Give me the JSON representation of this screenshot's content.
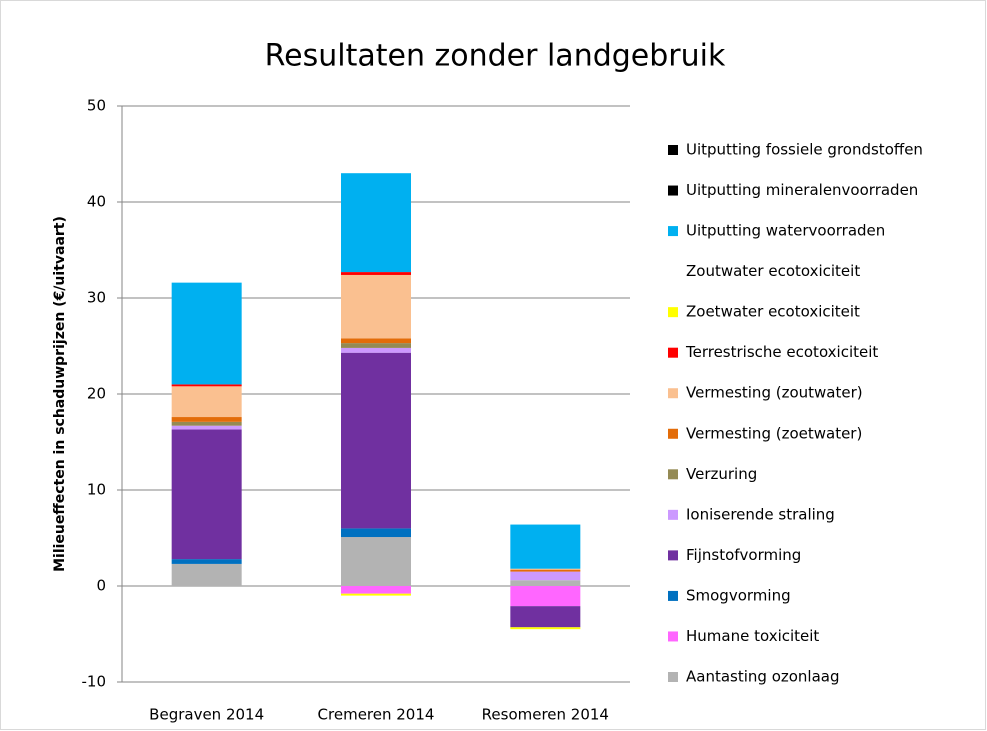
{
  "chart_data": {
    "type": "stacked_bar",
    "title": "Resultaten zonder landgebruik",
    "ylabel": "Milieueffecten in schaduwprijzen (€/uitvaart)",
    "categories": [
      "Begraven 2014",
      "Cremeren 2014",
      "Resomeren 2014"
    ],
    "ylim": [
      -10,
      50
    ],
    "yticks": [
      -10,
      0,
      10,
      20,
      30,
      40,
      50
    ],
    "grid": true,
    "legend": "right",
    "series": [
      {
        "name": "Aantasting ozonlaag",
        "color": "#b3b3b3",
        "values": [
          2.3,
          5.1,
          0.6
        ]
      },
      {
        "name": "Humane toxiciteit",
        "color": "#ff66ff",
        "values": [
          0,
          -0.8,
          -2.1
        ]
      },
      {
        "name": "Smogvorming",
        "color": "#0070c0",
        "values": [
          0.5,
          0.9,
          0
        ]
      },
      {
        "name": "Fijnstofvorming",
        "color": "#7030a0",
        "values": [
          13.5,
          18.3,
          -2.2
        ]
      },
      {
        "name": "Ioniserende straling",
        "color": "#cc99ff",
        "values": [
          0.4,
          0.5,
          0.9
        ]
      },
      {
        "name": "Verzuring",
        "color": "#948a54",
        "values": [
          0.4,
          0.5,
          0
        ]
      },
      {
        "name": "Vermesting (zoetwater)",
        "color": "#e36c09",
        "values": [
          0.5,
          0.5,
          0.2
        ]
      },
      {
        "name": "Vermesting (zoutwater)",
        "color": "#fac090",
        "values": [
          3.2,
          6.6,
          0.1
        ]
      },
      {
        "name": "Terrestrische ecotoxiciteit",
        "color": "#ff0000",
        "values": [
          0.2,
          0.3,
          0
        ]
      },
      {
        "name": "Zoetwater ecotoxiciteit",
        "color": "#ffff00",
        "values": [
          0,
          -0.2,
          -0.2
        ]
      },
      {
        "name": "Zoutwater ecotoxiciteit",
        "color": "#ffffff",
        "values": [
          0,
          0,
          0
        ]
      },
      {
        "name": "Uitputting watervoorraden",
        "color": "#00b0f0",
        "values": [
          10.6,
          10.3,
          4.6
        ]
      },
      {
        "name": "Uitputting mineralenvoorraden",
        "color": "#000000",
        "values": [
          0,
          0,
          0
        ]
      },
      {
        "name": "Uitputting fossiele grondstoffen",
        "color": "#000000",
        "values": [
          0,
          0,
          0
        ]
      }
    ]
  }
}
